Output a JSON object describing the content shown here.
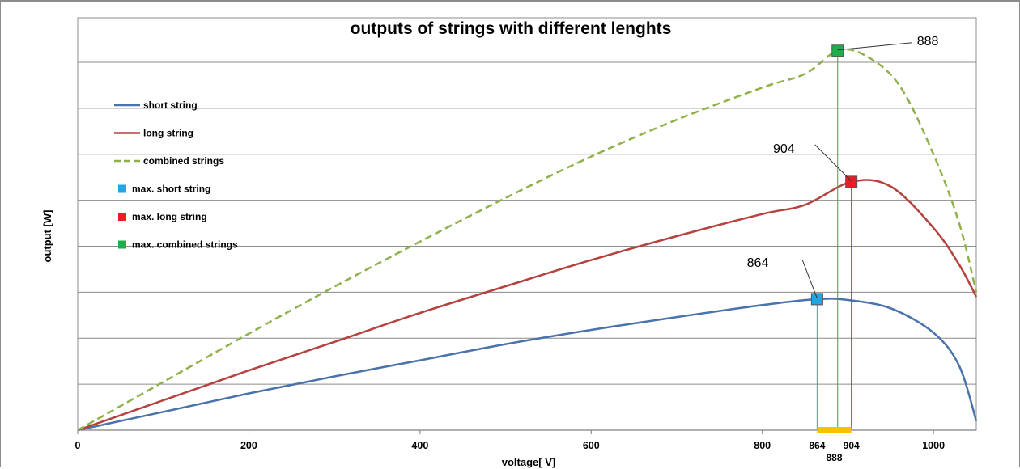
{
  "chart_data": {
    "type": "line",
    "title": "outputs of strings with different lenghts",
    "xlabel": "voltage[ V]",
    "ylabel": "output [W]",
    "xlim": [
      0,
      1050
    ],
    "ylim": [
      0,
      8
    ],
    "x_ticks": [
      0,
      200,
      400,
      600,
      800,
      1000
    ],
    "y_ticks_labeled": false,
    "grid": {
      "horizontal": true,
      "vertical": false
    },
    "legend_position": "left",
    "colors": {
      "short": "#4a72ab",
      "long": "#b5423f",
      "combined": "#8fb14a",
      "max_short": "#1ea8de",
      "max_long": "#ee1c24",
      "max_combined": "#1bb04a",
      "range_bar": "#ffc000"
    },
    "series": [
      {
        "name": "short string",
        "style": "solid",
        "color": "#4a72ab",
        "points": [
          [
            0,
            0
          ],
          [
            100,
            0.4
          ],
          [
            200,
            0.8
          ],
          [
            300,
            1.17
          ],
          [
            400,
            1.52
          ],
          [
            500,
            1.87
          ],
          [
            600,
            2.18
          ],
          [
            700,
            2.46
          ],
          [
            800,
            2.72
          ],
          [
            864,
            2.85
          ],
          [
            900,
            2.83
          ],
          [
            950,
            2.65
          ],
          [
            1000,
            2.12
          ],
          [
            1030,
            1.4
          ],
          [
            1050,
            0.2
          ]
        ]
      },
      {
        "name": "long string",
        "style": "solid",
        "color": "#b5423f",
        "points": [
          [
            0,
            0
          ],
          [
            100,
            0.65
          ],
          [
            200,
            1.3
          ],
          [
            300,
            1.92
          ],
          [
            400,
            2.55
          ],
          [
            500,
            3.13
          ],
          [
            600,
            3.7
          ],
          [
            700,
            4.22
          ],
          [
            800,
            4.7
          ],
          [
            850,
            4.9
          ],
          [
            904,
            5.4
          ],
          [
            950,
            5.3
          ],
          [
            1000,
            4.4
          ],
          [
            1030,
            3.6
          ],
          [
            1050,
            2.9
          ]
        ]
      },
      {
        "name": "combined strings",
        "style": "dashed",
        "color": "#8fb14a",
        "points": [
          [
            0,
            0
          ],
          [
            100,
            1.05
          ],
          [
            200,
            2.1
          ],
          [
            300,
            3.12
          ],
          [
            400,
            4.1
          ],
          [
            500,
            5.05
          ],
          [
            600,
            5.95
          ],
          [
            700,
            6.75
          ],
          [
            800,
            7.45
          ],
          [
            850,
            7.75
          ],
          [
            888,
            8.25
          ],
          [
            920,
            8.15
          ],
          [
            960,
            7.5
          ],
          [
            1000,
            6.0
          ],
          [
            1030,
            4.5
          ],
          [
            1050,
            3.0
          ]
        ]
      }
    ],
    "maxima": [
      {
        "name": "max. short string",
        "x": 864,
        "y": 2.85,
        "label": "864",
        "color": "#1ea8de"
      },
      {
        "name": "max. long string",
        "x": 904,
        "y": 5.4,
        "label": "904",
        "color": "#ee1c24"
      },
      {
        "name": "max. combined strings",
        "x": 888,
        "y": 8.25,
        "label": "888",
        "color": "#1bb04a"
      }
    ],
    "range_bar": {
      "from": 864,
      "to": 904,
      "labels": [
        "864",
        "904",
        "888"
      ]
    }
  }
}
